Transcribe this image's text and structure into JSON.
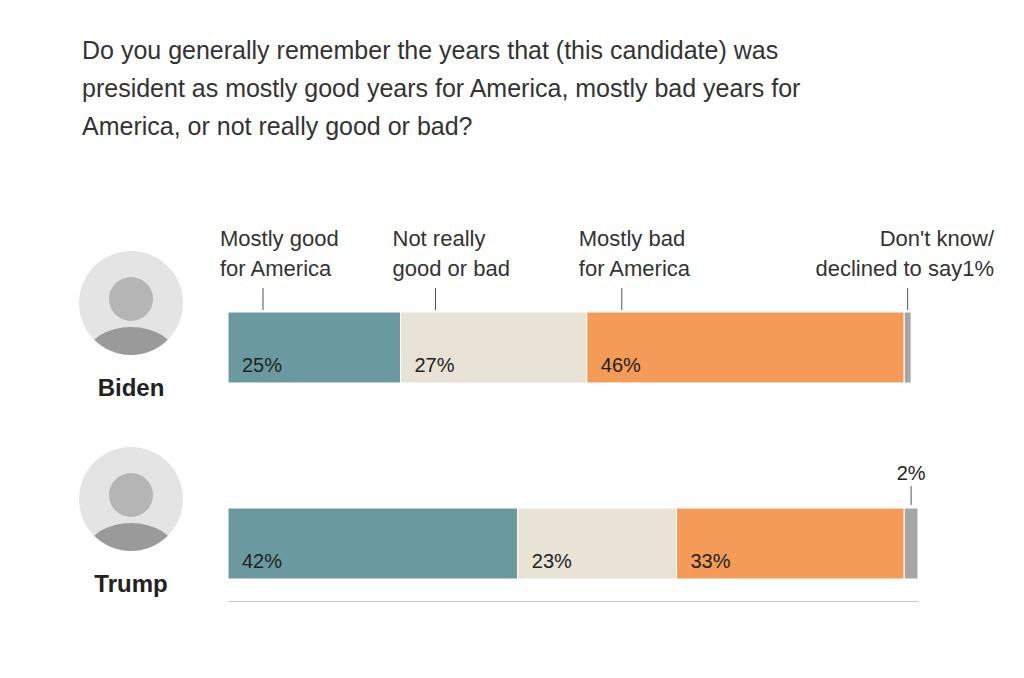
{
  "chart_data": {
    "type": "bar",
    "title": "Do you generally remember the years that (this candidate) was president as mostly good years for America, mostly bad years for America, or not really good or bad?",
    "orientation": "horizontal",
    "stacked": true,
    "data_labels": true,
    "tick_labels": "y",
    "legend": "top",
    "categories": [
      "Biden",
      "Trump"
    ],
    "xlim": [
      0,
      100
    ],
    "series": [
      {
        "name": "Mostly good for America",
        "color": "#6a9aa0",
        "values": [
          25,
          42
        ],
        "value_labels": [
          "25%",
          "42%"
        ]
      },
      {
        "name": "Not really good or bad",
        "color": "#e9e2d6",
        "values": [
          27,
          23
        ],
        "value_labels": [
          "27%",
          "23%"
        ]
      },
      {
        "name": "Mostly bad for America",
        "color": "#f49b58",
        "values": [
          46,
          33
        ],
        "value_labels": [
          "46%",
          "33%"
        ]
      },
      {
        "name": "Don't know/declined to say",
        "color": "#a6a6a6",
        "values": [
          1,
          2
        ],
        "value_labels": [
          "1%",
          "2%"
        ]
      }
    ]
  }
}
